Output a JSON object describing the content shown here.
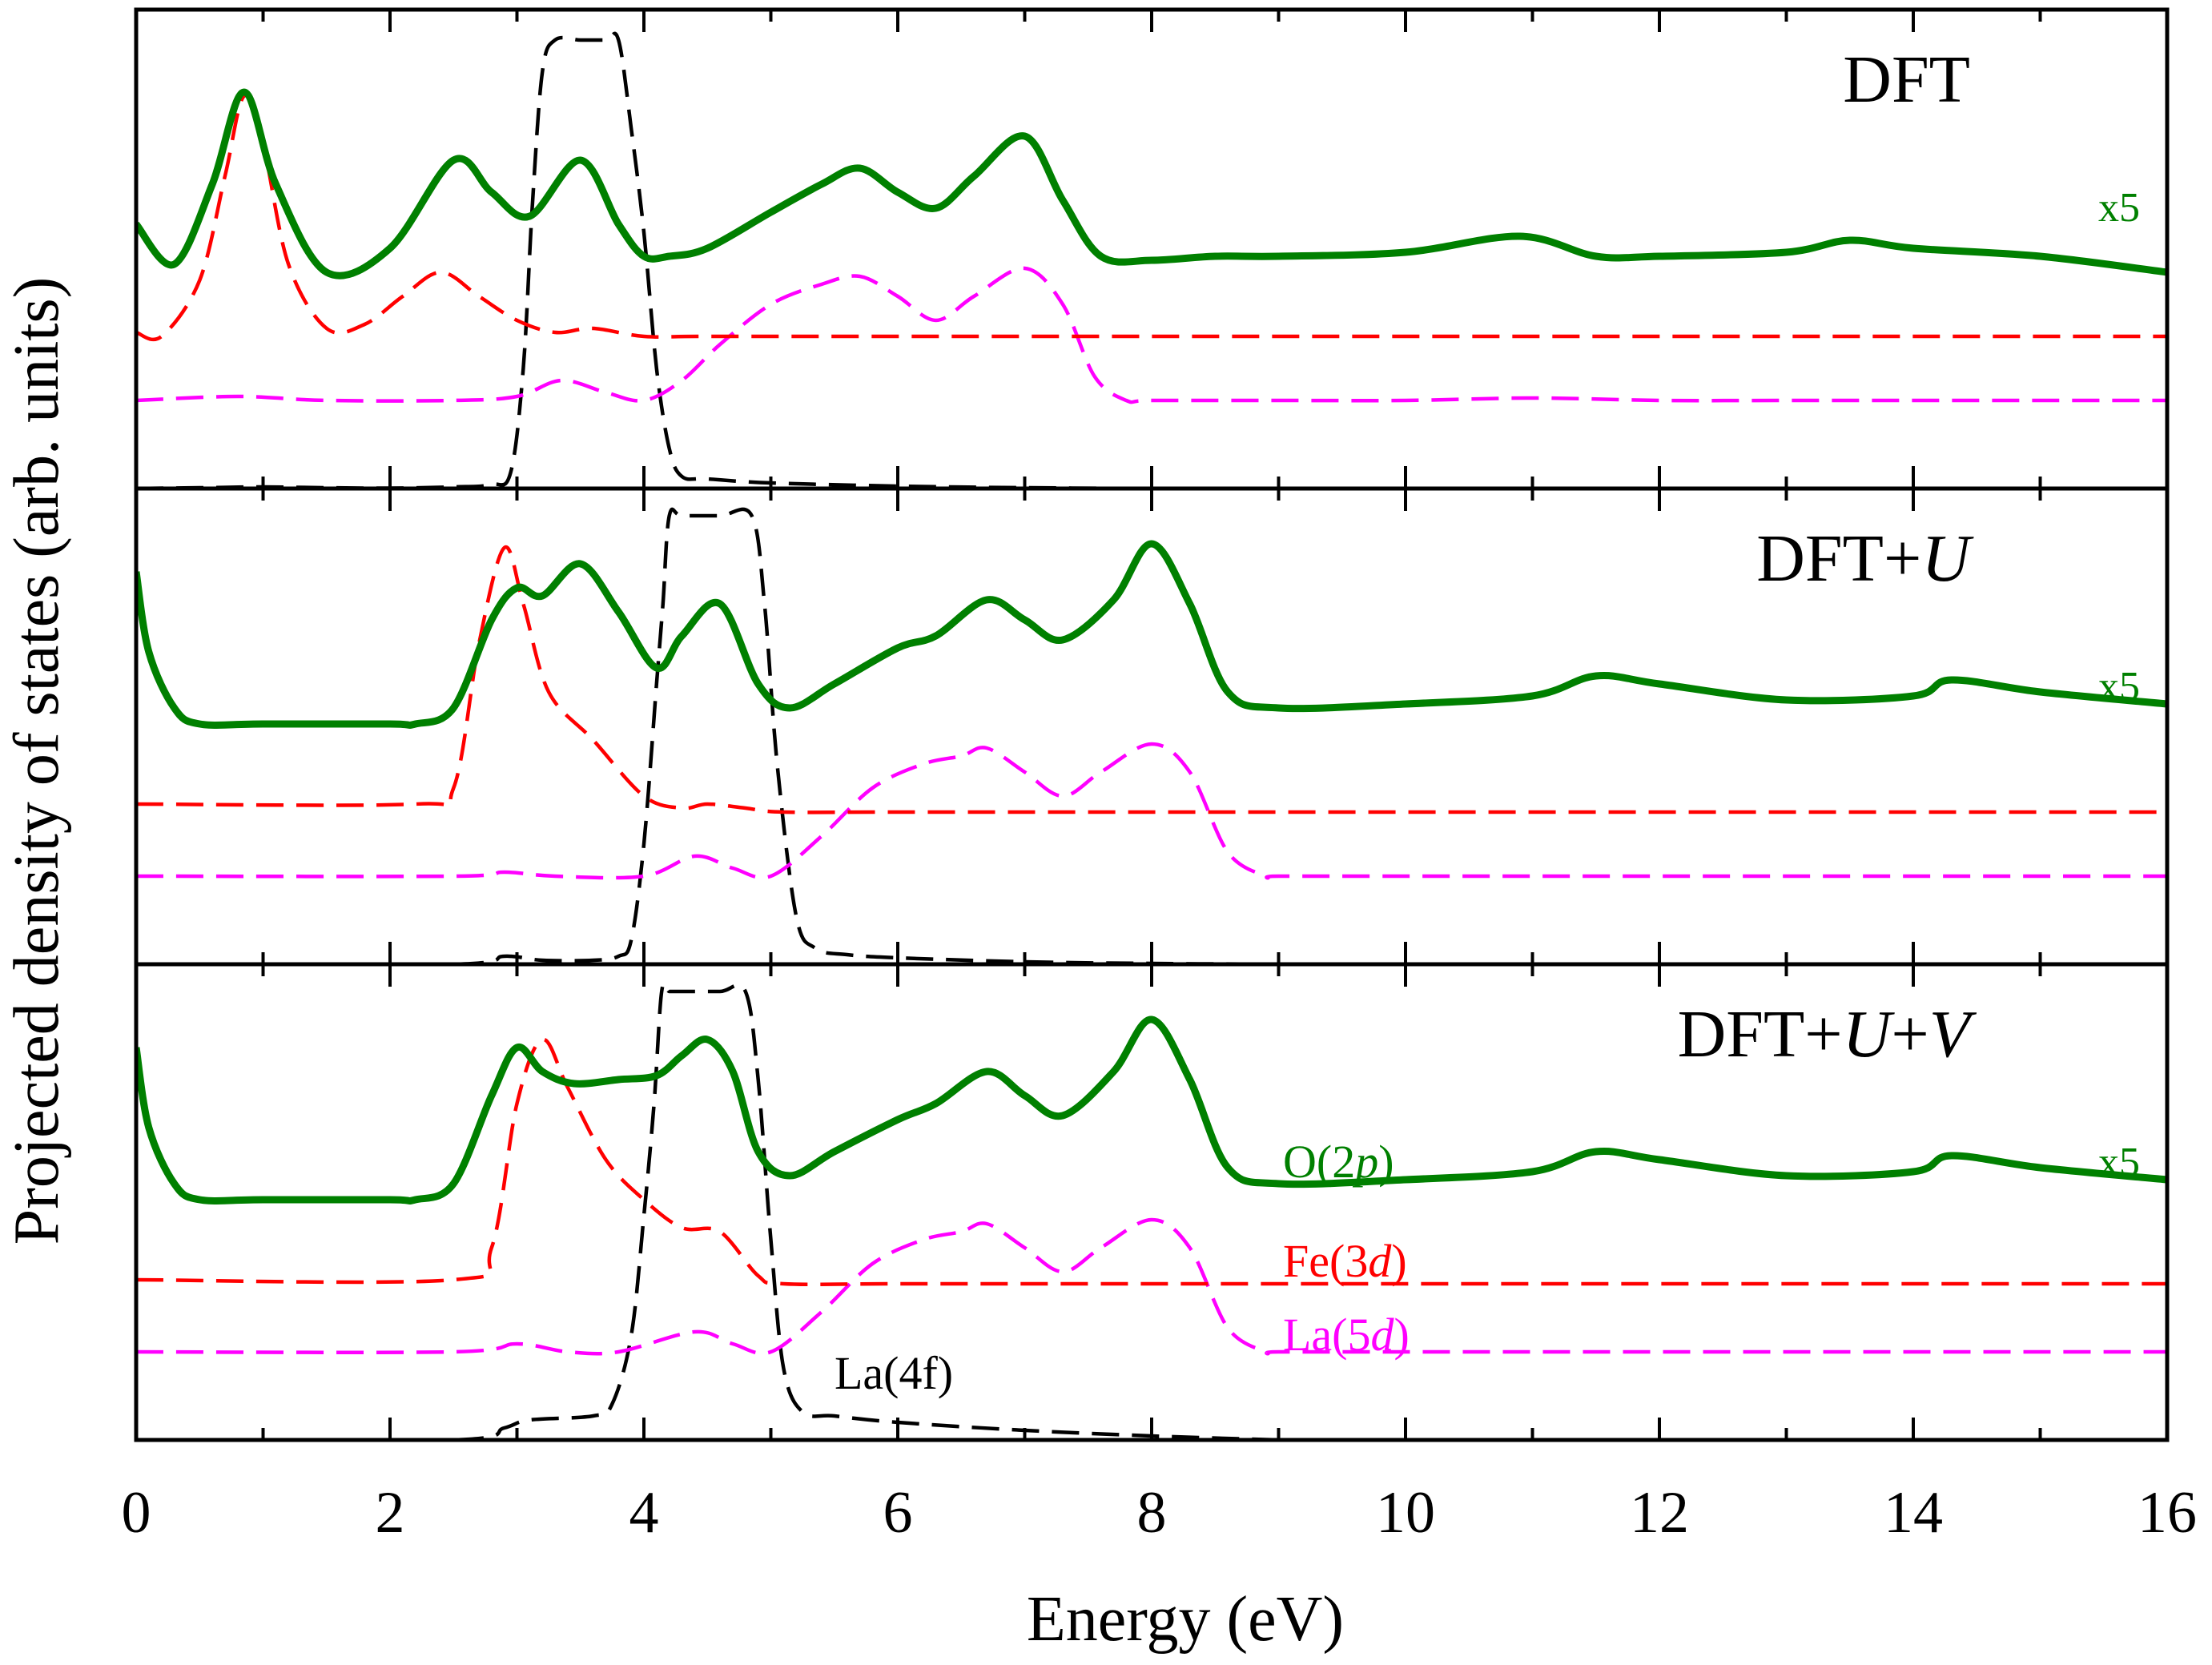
{
  "chart_data": {
    "type": "line",
    "xlabel": "Energy (eV)",
    "ylabel": "Projected density of states (arb. units)",
    "xlim": [
      0,
      16
    ],
    "xticks": [
      "0",
      "2",
      "4",
      "6",
      "8",
      "10",
      "12",
      "14",
      "16"
    ],
    "y_ticks_shown": false,
    "grid": false,
    "legend_placement": "bottom panel, right of center",
    "legend": [
      {
        "label": "O(2",
        "italic": "p",
        "suffix": ")",
        "color": "#008000"
      },
      {
        "label": "Fe(3",
        "italic": "d",
        "suffix": ")",
        "color": "#ff0000"
      },
      {
        "label": "La(5",
        "italic": "d",
        "suffix": ")",
        "color": "#ff00ff"
      },
      {
        "label": "La(4f)",
        "italic": "",
        "suffix": "",
        "color": "#000000"
      }
    ],
    "colors": {
      "O2p": "#008000",
      "Fe3d": "#ff0000",
      "La5d": "#ff00ff",
      "La4f": "#000000"
    },
    "panels": [
      {
        "title": "DFT",
        "title_parts": [
          {
            "t": "DFT",
            "i": false
          }
        ],
        "scale_label": "x5",
        "series": [
          {
            "key": "La4f",
            "style": "dashed",
            "x": [
              0,
              0.5,
              1,
              1.5,
              2,
              2.5,
              2.8,
              2.95,
              3.05,
              3.12,
              3.2,
              3.3,
              3.5,
              3.7,
              3.8,
              3.9,
              4.0,
              4.1,
              4.2,
              4.3,
              4.5,
              5,
              6,
              7,
              8
            ],
            "y": [
              0,
              0.01,
              0.02,
              0.01,
              0.005,
              0.02,
              0.05,
              0.2,
              1.5,
              3.5,
              5.2,
              5.6,
              5.6,
              5.6,
              5.6,
              4.5,
              3.2,
              1.5,
              0.5,
              0.15,
              0.12,
              0.07,
              0.03,
              0.01,
              0
            ]
          },
          {
            "key": "La5d",
            "style": "dashed",
            "x": [
              0,
              0.8,
              1.5,
              2.5,
              3.0,
              3.35,
              3.7,
              4.0,
              4.3,
              4.6,
              5.0,
              5.4,
              5.7,
              6.0,
              6.3,
              6.6,
              7.0,
              7.3,
              7.55,
              7.8,
              8,
              9,
              10,
              11,
              12,
              13,
              14,
              15,
              16
            ],
            "y": [
              1.1,
              1.15,
              1.1,
              1.1,
              1.15,
              1.35,
              1.2,
              1.1,
              1.35,
              1.8,
              2.3,
              2.55,
              2.65,
              2.4,
              2.1,
              2.4,
              2.75,
              2.3,
              1.4,
              1.1,
              1.1,
              1.1,
              1.1,
              1.13,
              1.1,
              1.1,
              1.1,
              1.1,
              1.1
            ]
          },
          {
            "key": "Fe3d",
            "style": "dashed",
            "x": [
              0,
              0.2,
              0.5,
              0.7,
              0.85,
              1.0,
              1.2,
              1.5,
              1.8,
              2.1,
              2.4,
              2.7,
              3.0,
              3.3,
              3.6,
              4.0,
              4.5,
              6,
              8,
              10,
              12,
              14,
              16
            ],
            "y": [
              1.95,
              1.9,
              2.6,
              3.9,
              4.9,
              4.3,
              2.8,
              2.0,
              2.05,
              2.4,
              2.7,
              2.4,
              2.1,
              1.95,
              2.0,
              1.9,
              1.9,
              1.9,
              1.9,
              1.9,
              1.9,
              1.9,
              1.9
            ]
          },
          {
            "key": "O2p",
            "style": "solid",
            "x": [
              0,
              0.3,
              0.6,
              0.85,
              1.1,
              1.5,
              2.0,
              2.5,
              2.8,
              3.1,
              3.5,
              3.8,
              4.0,
              4.2,
              4.5,
              5.0,
              5.4,
              5.7,
              6.0,
              6.3,
              6.6,
              7.0,
              7.3,
              7.6,
              8,
              8.5,
              9,
              10,
              10.9,
              11.5,
              12,
              13,
              13.5,
              14,
              15,
              16
            ],
            "y": [
              3.3,
              2.8,
              3.8,
              4.95,
              3.8,
              2.7,
              3.0,
              4.1,
              3.7,
              3.4,
              4.1,
              3.3,
              2.9,
              2.9,
              3.0,
              3.45,
              3.8,
              4.0,
              3.7,
              3.5,
              3.9,
              4.4,
              3.6,
              2.9,
              2.85,
              2.9,
              2.9,
              2.95,
              3.15,
              2.9,
              2.9,
              2.95,
              3.1,
              3.0,
              2.9,
              2.7
            ]
          }
        ]
      },
      {
        "title": "DFT+U",
        "title_parts": [
          {
            "t": "DFT+",
            "i": false
          },
          {
            "t": "U",
            "i": true
          }
        ],
        "scale_label": "x5",
        "series": [
          {
            "key": "La4f",
            "style": "dashed",
            "x": [
              0,
              2.5,
              2.9,
              3.2,
              3.6,
              3.8,
              3.9,
              4.0,
              4.1,
              4.15,
              4.2,
              4.3,
              4.6,
              4.85,
              4.95,
              5.05,
              5.2,
              5.35,
              5.6,
              6,
              7,
              8,
              9
            ],
            "y": [
              0,
              0,
              0.1,
              0.05,
              0.05,
              0.1,
              0.3,
              1.5,
              3.5,
              4.5,
              5.6,
              5.6,
              5.6,
              5.6,
              4.5,
              2.5,
              0.6,
              0.2,
              0.12,
              0.08,
              0.03,
              0.01,
              0
            ]
          },
          {
            "key": "La5d",
            "style": "dashed",
            "x": [
              0,
              2.5,
              2.9,
              3.3,
              4.0,
              4.4,
              4.7,
              5.0,
              5.4,
              5.8,
              6.2,
              6.5,
              6.7,
              7.0,
              7.3,
              7.6,
              8.0,
              8.3,
              8.6,
              8.9,
              9,
              10,
              11,
              12,
              13,
              14,
              15,
              16
            ],
            "y": [
              1.1,
              1.1,
              1.15,
              1.1,
              1.1,
              1.35,
              1.2,
              1.1,
              1.6,
              2.2,
              2.5,
              2.6,
              2.7,
              2.4,
              2.1,
              2.4,
              2.75,
              2.4,
              1.4,
              1.1,
              1.1,
              1.1,
              1.1,
              1.1,
              1.1,
              1.1,
              1.1,
              1.1
            ]
          },
          {
            "key": "Fe3d",
            "style": "dashed",
            "x": [
              0,
              2.2,
              2.5,
              2.7,
              2.9,
              3.05,
              3.25,
              3.6,
              4.0,
              4.3,
              4.5,
              4.8,
              5.1,
              6,
              8,
              10,
              12,
              14,
              16
            ],
            "y": [
              2.0,
              2.0,
              2.2,
              4.0,
              5.2,
              4.5,
              3.4,
              2.8,
              2.1,
              1.95,
              2.0,
              1.95,
              1.9,
              1.9,
              1.9,
              1.9,
              1.9,
              1.9,
              1.9
            ]
          },
          {
            "key": "O2p",
            "style": "solid",
            "x": [
              0,
              0.1,
              0.3,
              0.5,
              1,
              2,
              2.2,
              2.5,
              2.8,
              3.0,
              3.2,
              3.5,
              3.8,
              4.1,
              4.3,
              4.6,
              4.9,
              5.15,
              5.5,
              6.0,
              6.3,
              6.7,
              7.0,
              7.3,
              7.7,
              8.0,
              8.3,
              8.6,
              9,
              10,
              11,
              11.5,
              12,
              13,
              14,
              14.3,
              15,
              16
            ],
            "y": [
              4.9,
              3.9,
              3.2,
              3.0,
              3.0,
              3.0,
              3.0,
              3.2,
              4.3,
              4.7,
              4.6,
              5.0,
              4.4,
              3.7,
              4.1,
              4.5,
              3.5,
              3.2,
              3.5,
              3.95,
              4.1,
              4.55,
              4.3,
              4.05,
              4.55,
              5.25,
              4.5,
              3.4,
              3.2,
              3.25,
              3.35,
              3.6,
              3.5,
              3.3,
              3.35,
              3.55,
              3.4,
              3.25
            ]
          }
        ]
      },
      {
        "title": "DFT+U+V",
        "title_parts": [
          {
            "t": "DFT+",
            "i": false
          },
          {
            "t": "U",
            "i": true
          },
          {
            "t": "+",
            "i": false
          },
          {
            "t": "V",
            "i": true
          }
        ],
        "scale_label": "x5",
        "series": [
          {
            "key": "La4f",
            "style": "dashed",
            "x": [
              0,
              2.5,
              2.9,
              3.1,
              3.6,
              3.75,
              3.9,
              4.0,
              4.08,
              4.14,
              4.2,
              4.3,
              4.6,
              4.8,
              4.9,
              5.0,
              5.1,
              5.25,
              5.5,
              6,
              7,
              8,
              9
            ],
            "y": [
              0,
              0,
              0.15,
              0.25,
              0.3,
              0.45,
              1.3,
              2.8,
              4.2,
              5.6,
              5.6,
              5.6,
              5.6,
              5.6,
              4.5,
              2.5,
              0.9,
              0.35,
              0.3,
              0.22,
              0.12,
              0.05,
              0
            ]
          },
          {
            "key": "La5d",
            "style": "dashed",
            "x": [
              0,
              2.5,
              3.0,
              3.4,
              3.8,
              4.4,
              4.7,
              5.0,
              5.4,
              5.8,
              6.2,
              6.5,
              6.7,
              7.0,
              7.3,
              7.6,
              8.0,
              8.3,
              8.6,
              8.9,
              9,
              10,
              11,
              12,
              13,
              14,
              15,
              16
            ],
            "y": [
              1.1,
              1.1,
              1.2,
              1.1,
              1.1,
              1.35,
              1.2,
              1.1,
              1.6,
              2.2,
              2.5,
              2.6,
              2.7,
              2.4,
              2.1,
              2.4,
              2.75,
              2.4,
              1.4,
              1.1,
              1.1,
              1.1,
              1.1,
              1.1,
              1.1,
              1.1,
              1.1,
              1.1
            ]
          },
          {
            "key": "Fe3d",
            "style": "dashed",
            "x": [
              0,
              2.5,
              2.8,
              3.0,
              3.2,
              3.4,
              3.7,
              4.0,
              4.3,
              4.6,
              4.9,
              5.1,
              6,
              8,
              10,
              12,
              14,
              16
            ],
            "y": [
              2.0,
              2.0,
              2.4,
              4.2,
              5.0,
              4.4,
              3.5,
              3.0,
              2.65,
              2.6,
              2.05,
              1.95,
              1.95,
              1.95,
              1.95,
              1.95,
              1.95,
              1.95
            ]
          },
          {
            "key": "O2p",
            "style": "solid",
            "x": [
              0,
              0.1,
              0.3,
              0.5,
              1,
              2,
              2.2,
              2.5,
              2.8,
              3.0,
              3.2,
              3.45,
              3.8,
              4.1,
              4.3,
              4.5,
              4.7,
              4.9,
              5.15,
              5.5,
              6.0,
              6.3,
              6.7,
              7.0,
              7.3,
              7.7,
              8.0,
              8.3,
              8.6,
              9,
              10,
              11,
              11.5,
              12,
              13,
              14,
              14.3,
              15,
              16
            ],
            "y": [
              4.9,
              3.9,
              3.2,
              3.0,
              3.0,
              3.0,
              3.0,
              3.2,
              4.3,
              4.9,
              4.6,
              4.45,
              4.5,
              4.55,
              4.8,
              5.0,
              4.6,
              3.6,
              3.3,
              3.6,
              4.0,
              4.2,
              4.6,
              4.3,
              4.05,
              4.6,
              5.25,
              4.5,
              3.4,
              3.2,
              3.25,
              3.35,
              3.6,
              3.5,
              3.3,
              3.35,
              3.55,
              3.4,
              3.25
            ]
          }
        ]
      }
    ]
  }
}
